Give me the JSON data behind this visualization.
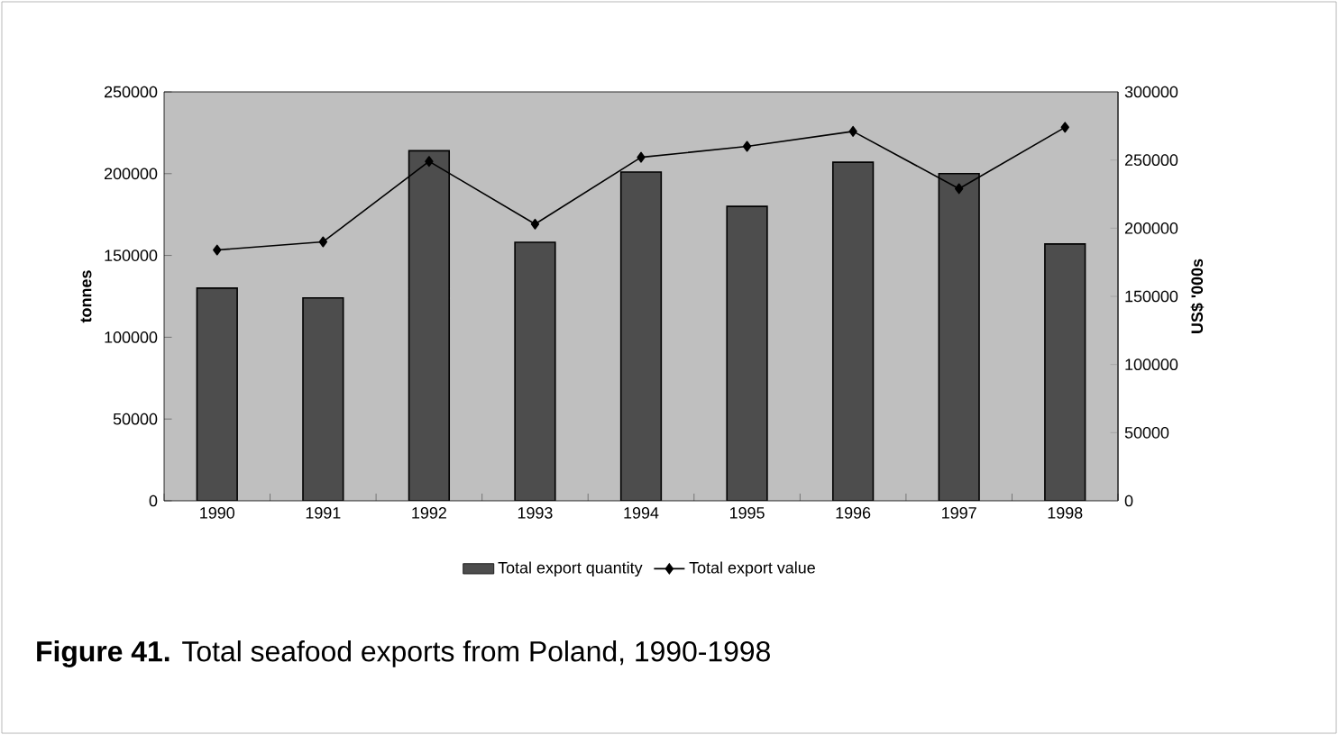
{
  "chart_data": {
    "type": "bar",
    "title": "**Figure 41.**  Total seafood exports from Poland, 1990-1998",
    "categories": [
      "1990",
      "1991",
      "1992",
      "1993",
      "1994",
      "1995",
      "1996",
      "1997",
      "1998"
    ],
    "series": [
      {
        "name": "Total export quantity",
        "color": "#4d4d4d",
        "values": [
          130000,
          124000,
          214000,
          158000,
          201000,
          180000,
          207000,
          200000,
          157000
        ]
      },
      {
        "name": "Total export value",
        "type": "line",
        "axis": "y2",
        "color": "#000000",
        "marker": "diamond",
        "values": [
          184000,
          190000,
          249000,
          203000,
          252000,
          260000,
          271000,
          229000,
          274000
        ]
      }
    ],
    "ylabel": "tonnes",
    "y2label": "US$ '000s",
    "ylim": [
      0,
      250000
    ],
    "yticks": [
      0,
      50000,
      100000,
      150000,
      200000,
      250000
    ],
    "y2lim": [
      0,
      300000
    ],
    "y2ticks": [
      0,
      50000,
      100000,
      150000,
      200000,
      250000,
      300000
    ],
    "legend": "bottom"
  }
}
